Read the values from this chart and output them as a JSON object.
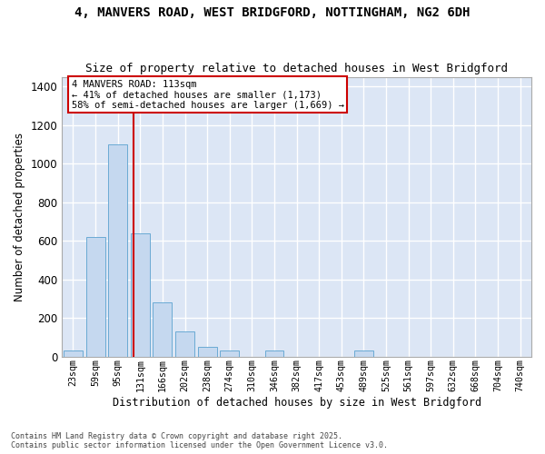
{
  "title_line1": "4, MANVERS ROAD, WEST BRIDGFORD, NOTTINGHAM, NG2 6DH",
  "title_line2": "Size of property relative to detached houses in West Bridgford",
  "xlabel": "Distribution of detached houses by size in West Bridgford",
  "ylabel": "Number of detached properties",
  "bar_color": "#c5d8ef",
  "bar_edge_color": "#6aaad4",
  "background_color": "#dce6f5",
  "grid_color": "#ffffff",
  "fig_facecolor": "#ffffff",
  "categories": [
    "23sqm",
    "59sqm",
    "95sqm",
    "131sqm",
    "166sqm",
    "202sqm",
    "238sqm",
    "274sqm",
    "310sqm",
    "346sqm",
    "382sqm",
    "417sqm",
    "453sqm",
    "489sqm",
    "525sqm",
    "561sqm",
    "597sqm",
    "632sqm",
    "668sqm",
    "704sqm",
    "740sqm"
  ],
  "values": [
    30,
    620,
    1100,
    640,
    280,
    130,
    50,
    30,
    0,
    30,
    0,
    0,
    0,
    30,
    0,
    0,
    0,
    0,
    0,
    0,
    0
  ],
  "ylim": [
    0,
    1450
  ],
  "yticks": [
    0,
    200,
    400,
    600,
    800,
    1000,
    1200,
    1400
  ],
  "property_line_bin": 2.72,
  "annotation_text": "4 MANVERS ROAD: 113sqm\n← 41% of detached houses are smaller (1,173)\n58% of semi-detached houses are larger (1,669) →",
  "annotation_box_color": "#ffffff",
  "annotation_border_color": "#cc0000",
  "red_line_color": "#cc0000",
  "footer_line1": "Contains HM Land Registry data © Crown copyright and database right 2025.",
  "footer_line2": "Contains public sector information licensed under the Open Government Licence v3.0."
}
